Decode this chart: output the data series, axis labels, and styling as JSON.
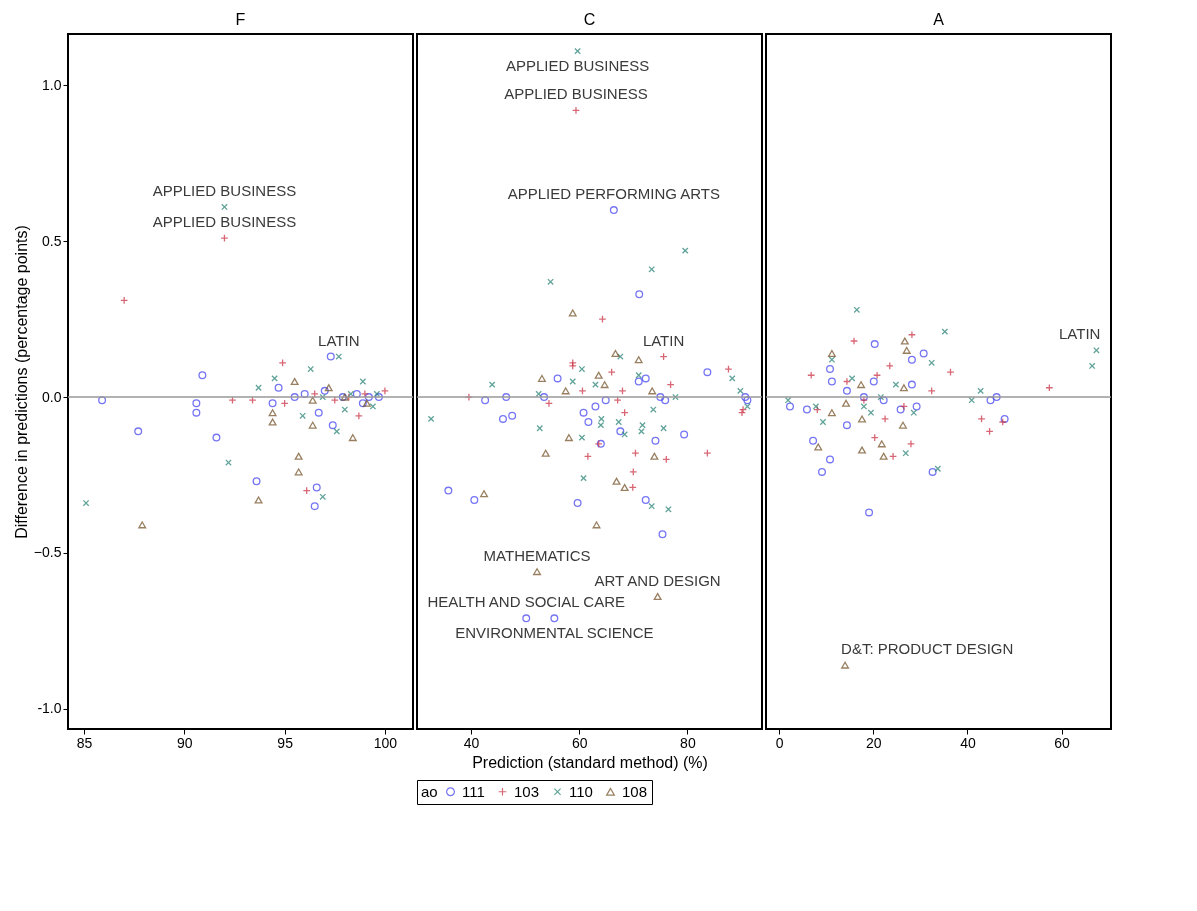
{
  "chart_data": [
    {
      "type": "scatter",
      "title": "F",
      "ylabel": "Difference in predictions (percentage points)",
      "xlim": [
        84.2,
        101.4
      ],
      "xticks": [
        85,
        90,
        95,
        100
      ],
      "ylim": [
        -1.065,
        1.165
      ],
      "yticks": [
        {
          "value": -1,
          "label": "-1.0"
        },
        -0.5,
        {
          "value": 0,
          "label": "0.0"
        },
        0.5,
        {
          "value": 1,
          "label": "1.0"
        }
      ],
      "grid": false,
      "legend": false,
      "ref_lines": [
        {
          "axis": "y",
          "value": 0,
          "color": "#999999"
        }
      ],
      "annotations": [
        {
          "text": "APPLIED BUSINESS",
          "x": 92.0,
          "y": 0.61
        },
        {
          "text": "APPLIED BUSINESS",
          "x": 92.0,
          "y": 0.51
        },
        {
          "text": "LATIN",
          "x": 97.7,
          "y": 0.13
        }
      ],
      "series": [
        {
          "color": "#3b3bef",
          "marker": "circle",
          "x": [
            85.9,
            87.7,
            90.9,
            90.6,
            90.6,
            91.6,
            93.6,
            96.6,
            96.5,
            97.3,
            97.4,
            96.7,
            94.4,
            94.7,
            96.0,
            97.9,
            98.6,
            99.2,
            99.7,
            95.5,
            98.9,
            97.0
          ],
          "values": [
            -0.01,
            -0.11,
            0.07,
            -0.02,
            -0.05,
            -0.13,
            -0.27,
            -0.29,
            -0.35,
            0.13,
            -0.09,
            -0.05,
            -0.02,
            0.03,
            0.01,
            0.0,
            0.01,
            0.0,
            0.0,
            0.0,
            -0.02,
            0.02
          ]
        },
        {
          "color": "#c8283c",
          "marker": "cross",
          "x": [
            87.0,
            92.0,
            92.4,
            93.4,
            94.9,
            96.1,
            98.7,
            95.0,
            100.0,
            96.5,
            97.5,
            98.2,
            99.0
          ],
          "values": [
            0.31,
            0.51,
            -0.01,
            -0.01,
            0.11,
            -0.3,
            -0.06,
            -0.02,
            0.02,
            0.01,
            -0.01,
            0.0,
            0.01
          ]
        },
        {
          "color": "#1e7d6e",
          "marker": "x",
          "x": [
            85.1,
            92.0,
            92.2,
            93.7,
            94.5,
            96.3,
            95.9,
            96.9,
            97.6,
            97.7,
            98.9,
            98.0,
            99.4,
            96.9,
            98.3,
            99.6
          ],
          "values": [
            -0.34,
            0.61,
            -0.21,
            0.03,
            0.06,
            0.09,
            -0.06,
            -0.32,
            -0.11,
            0.13,
            0.05,
            -0.04,
            -0.03,
            0.0,
            0.01,
            0.01
          ]
        },
        {
          "color": "#6e4a1e",
          "marker": "triangle",
          "x": [
            87.9,
            93.7,
            95.7,
            95.7,
            94.4,
            94.4,
            96.4,
            98.4,
            95.5,
            97.2,
            99.1,
            96.4,
            98.0
          ],
          "values": [
            -0.41,
            -0.33,
            -0.24,
            -0.19,
            -0.08,
            -0.05,
            -0.09,
            -0.13,
            0.05,
            0.03,
            -0.02,
            -0.01,
            0.0
          ]
        }
      ]
    },
    {
      "type": "scatter",
      "title": "C",
      "xlabel": "Prediction (standard method) (%)",
      "legend_title": "ao",
      "xlim": [
        30,
        93.8
      ],
      "xticks": [
        40,
        60,
        80
      ],
      "ylim": [
        -1.065,
        1.165
      ],
      "tick_labels": "x",
      "grid": false,
      "legend": "bottom",
      "ref_lines": [
        {
          "axis": "y",
          "value": 0,
          "color": "#999999"
        }
      ],
      "annotations": [
        {
          "text": "APPLIED BUSINESS",
          "x": 59.7,
          "y": 1.11
        },
        {
          "text": "APPLIED BUSINESS",
          "x": 59.4,
          "y": 0.92
        },
        {
          "text": "APPLIED PERFORMING ARTS",
          "x": 66.4,
          "y": 0.6
        },
        {
          "text": "LATIN",
          "x": 75.6,
          "y": 0.13
        },
        {
          "text": "MATHEMATICS",
          "x": 52.2,
          "y": -0.56
        },
        {
          "text": "ART AND DESIGN",
          "x": 74.5,
          "y": -0.64
        },
        {
          "text": "HEALTH AND SOCIAL CARE",
          "x": 50.2,
          "y": -0.71
        },
        {
          "text": "ENVIRONMENTAL SCIENCE",
          "x": 55.4,
          "y": -0.71
        }
      ],
      "series": [
        {
          "name": "111",
          "color": "#3b3bef",
          "marker": "circle",
          "x": [
            66.4,
            71.1,
            83.7,
            35.8,
            40.6,
            46.5,
            42.6,
            45.9,
            47.6,
            56.0,
            53.5,
            59.7,
            64.0,
            72.3,
            75.4,
            79.4,
            74.1,
            67.6,
            61.7,
            60.8,
            63.0,
            64.9,
            71.0,
            72.3,
            75.0,
            75.9,
            90.7,
            91.1,
            50.2,
            55.4
          ],
          "values": [
            0.6,
            0.33,
            0.08,
            -0.3,
            -0.33,
            0.0,
            -0.01,
            -0.07,
            -0.06,
            0.06,
            0.0,
            -0.34,
            -0.15,
            -0.33,
            -0.44,
            -0.12,
            -0.14,
            -0.11,
            -0.08,
            -0.05,
            -0.03,
            -0.01,
            0.05,
            0.06,
            0.0,
            -0.01,
            0.0,
            -0.01,
            -0.71,
            -0.71
          ]
        },
        {
          "name": "103",
          "color": "#c8283c",
          "marker": "cross",
          "x": [
            39.6,
            54.4,
            58.8,
            58.8,
            64.3,
            66.0,
            75.6,
            76.9,
            87.6,
            90.1,
            90.3,
            68.4,
            63.6,
            61.6,
            70.4,
            70.0,
            69.9,
            76.1,
            83.7,
            68.0,
            60.6,
            67.1,
            59.4
          ],
          "values": [
            0.0,
            -0.02,
            0.11,
            0.1,
            0.25,
            0.08,
            0.13,
            0.04,
            0.09,
            -0.05,
            -0.04,
            -0.05,
            -0.15,
            -0.19,
            -0.18,
            -0.24,
            -0.29,
            -0.2,
            -0.18,
            0.02,
            0.02,
            -0.01,
            0.92
          ]
        },
        {
          "name": "110",
          "color": "#1e7d6e",
          "marker": "x",
          "x": [
            32.6,
            43.9,
            54.7,
            73.4,
            79.6,
            67.6,
            60.5,
            58.8,
            52.5,
            52.7,
            60.5,
            60.8,
            64.1,
            64.0,
            67.3,
            68.4,
            71.7,
            71.5,
            75.6,
            73.4,
            76.5,
            73.7,
            77.8,
            88.3,
            89.8,
            91.1,
            63.0,
            71.0,
            59.7
          ],
          "values": [
            -0.07,
            0.04,
            0.37,
            0.41,
            0.47,
            0.13,
            0.09,
            0.05,
            0.01,
            -0.1,
            -0.13,
            -0.26,
            -0.07,
            -0.09,
            -0.08,
            -0.12,
            -0.09,
            -0.11,
            -0.1,
            -0.35,
            -0.36,
            -0.04,
            0.0,
            0.06,
            0.02,
            -0.03,
            0.04,
            0.07,
            1.11
          ]
        },
        {
          "name": "108",
          "color": "#6e4a1e",
          "marker": "triangle",
          "x": [
            58.8,
            53.1,
            63.6,
            66.7,
            71.0,
            64.7,
            57.5,
            73.5,
            58.1,
            53.8,
            73.9,
            66.9,
            68.4,
            42.4,
            63.2,
            52.2,
            74.5
          ],
          "values": [
            0.27,
            0.06,
            0.07,
            0.14,
            0.12,
            0.04,
            0.02,
            0.02,
            -0.13,
            -0.18,
            -0.19,
            -0.27,
            -0.29,
            -0.31,
            -0.41,
            -0.56,
            -0.64
          ]
        }
      ]
    },
    {
      "type": "scatter",
      "title": "A",
      "xlim": [
        -2.8,
        70.5
      ],
      "xticks": [
        0,
        20,
        40,
        60
      ],
      "ylim": [
        -1.065,
        1.165
      ],
      "tick_labels": "x",
      "grid": false,
      "legend": false,
      "ref_lines": [
        {
          "axis": "y",
          "value": 0,
          "color": "#999999"
        }
      ],
      "annotations": [
        {
          "text": "LATIN",
          "x": 67.4,
          "y": 0.15
        },
        {
          "text": "D&T: PRODUCT DESIGN",
          "x": 14.0,
          "y": -0.86
        }
      ],
      "series": [
        {
          "color": "#3b3bef",
          "marker": "circle",
          "x": [
            2.3,
            5.9,
            7.2,
            10.8,
            9.1,
            19.1,
            20.3,
            10.8,
            11.2,
            14.4,
            28.2,
            30.7,
            28.2,
            32.6,
            29.2,
            44.9,
            46.2,
            47.9,
            18.0,
            20.1,
            22.2,
            14.4,
            25.8
          ],
          "values": [
            -0.03,
            -0.04,
            -0.14,
            -0.2,
            -0.24,
            -0.37,
            0.17,
            0.09,
            0.05,
            -0.09,
            0.12,
            0.14,
            0.04,
            -0.24,
            -0.03,
            -0.01,
            0.0,
            -0.07,
            0.0,
            0.05,
            -0.01,
            0.02,
            -0.04
          ]
        },
        {
          "color": "#c8283c",
          "marker": "cross",
          "x": [
            6.8,
            15.9,
            28.2,
            23.5,
            36.4,
            32.4,
            57.4,
            43.0,
            44.7,
            47.5,
            20.3,
            22.5,
            24.2,
            28.0,
            8.1,
            20.8,
            26.5,
            14.4,
            18.0
          ],
          "values": [
            0.07,
            0.18,
            0.2,
            0.1,
            0.08,
            0.02,
            0.03,
            -0.07,
            -0.11,
            -0.08,
            -0.13,
            -0.07,
            -0.19,
            -0.15,
            -0.04,
            0.07,
            -0.03,
            0.05,
            -0.01
          ]
        },
        {
          "color": "#1e7d6e",
          "marker": "x",
          "x": [
            1.9,
            7.8,
            9.3,
            11.2,
            15.5,
            16.5,
            35.2,
            32.4,
            24.8,
            28.6,
            26.9,
            33.7,
            40.9,
            42.8,
            67.4,
            66.5,
            19.5,
            21.6,
            18.0
          ],
          "values": [
            -0.01,
            -0.03,
            -0.08,
            0.12,
            0.06,
            0.28,
            0.21,
            0.11,
            0.04,
            -0.05,
            -0.18,
            -0.23,
            -0.01,
            0.02,
            0.15,
            0.1,
            -0.05,
            0.0,
            -0.03
          ]
        },
        {
          "color": "#6e4a1e",
          "marker": "triangle",
          "x": [
            11.2,
            26.7,
            27.1,
            11.2,
            8.3,
            17.6,
            21.8,
            22.2,
            17.6,
            26.3,
            17.4,
            26.5,
            14.2,
            14.0
          ],
          "values": [
            0.14,
            0.18,
            0.15,
            -0.05,
            -0.16,
            -0.17,
            -0.15,
            -0.19,
            -0.07,
            -0.09,
            0.04,
            0.03,
            -0.02,
            -0.86
          ]
        }
      ]
    }
  ]
}
